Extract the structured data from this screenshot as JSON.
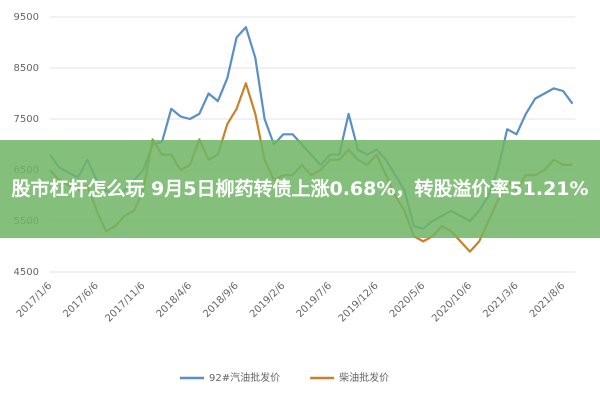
{
  "chart_data": {
    "type": "line",
    "categories": [
      "2017/1/6",
      null,
      null,
      null,
      null,
      "2017/6/6",
      null,
      null,
      null,
      null,
      "2017/11/6",
      null,
      null,
      null,
      null,
      "2018/4/6",
      null,
      null,
      null,
      null,
      "2018/9/6",
      null,
      null,
      null,
      null,
      "2019/2/6",
      null,
      null,
      null,
      null,
      "2019/7/6",
      null,
      null,
      null,
      null,
      "2019/12/6",
      null,
      null,
      null,
      null,
      "2020/5/6",
      null,
      null,
      null,
      null,
      "2020/10/6",
      null,
      null,
      null,
      null,
      "2021/3/6",
      null,
      null,
      null,
      null,
      "2021/8/6",
      null
    ],
    "series": [
      {
        "name": "92#汽油批发价",
        "color": "#5a8fc8",
        "values": [
          6800,
          6550,
          6450,
          6350,
          6700,
          6300,
          6100,
          6000,
          6100,
          6300,
          6500,
          7000,
          7050,
          7700,
          7550,
          7500,
          7600,
          8000,
          7850,
          8300,
          9100,
          9300,
          8700,
          7500,
          7000,
          7200,
          7200,
          7000,
          6800,
          6600,
          6800,
          6800,
          7600,
          6900,
          6800,
          6900,
          6700,
          6400,
          6100,
          5400,
          5350,
          5500,
          5600,
          5700,
          5600,
          5500,
          5700,
          6000,
          6500,
          7300,
          7200,
          7600,
          7900,
          8000,
          8100,
          8050,
          7800
        ]
      },
      {
        "name": "柴油批发价",
        "color": "#c9822b",
        "values": [
          6500,
          6300,
          6200,
          6100,
          6200,
          5700,
          5300,
          5400,
          5600,
          5700,
          6100,
          7100,
          6800,
          6800,
          6500,
          6600,
          7100,
          6700,
          6800,
          7400,
          7700,
          8200,
          7600,
          6700,
          6300,
          6400,
          6400,
          6600,
          6400,
          6500,
          6700,
          6700,
          6900,
          6700,
          6600,
          6800,
          6400,
          6000,
          5700,
          5200,
          5100,
          5200,
          5400,
          5300,
          5100,
          4900,
          5100,
          5500,
          5900,
          6300,
          6100,
          6400,
          6400,
          6500,
          6700,
          6600,
          6600
        ]
      }
    ],
    "ylim": [
      4500,
      9500
    ],
    "yticks": [
      4500,
      5500,
      6500,
      7500,
      8500,
      9500
    ],
    "grid": true
  },
  "banner": {
    "text": "股市杠杆怎么玩 9月5日柳药转债上涨0.68%，转股溢价率51.21%"
  }
}
